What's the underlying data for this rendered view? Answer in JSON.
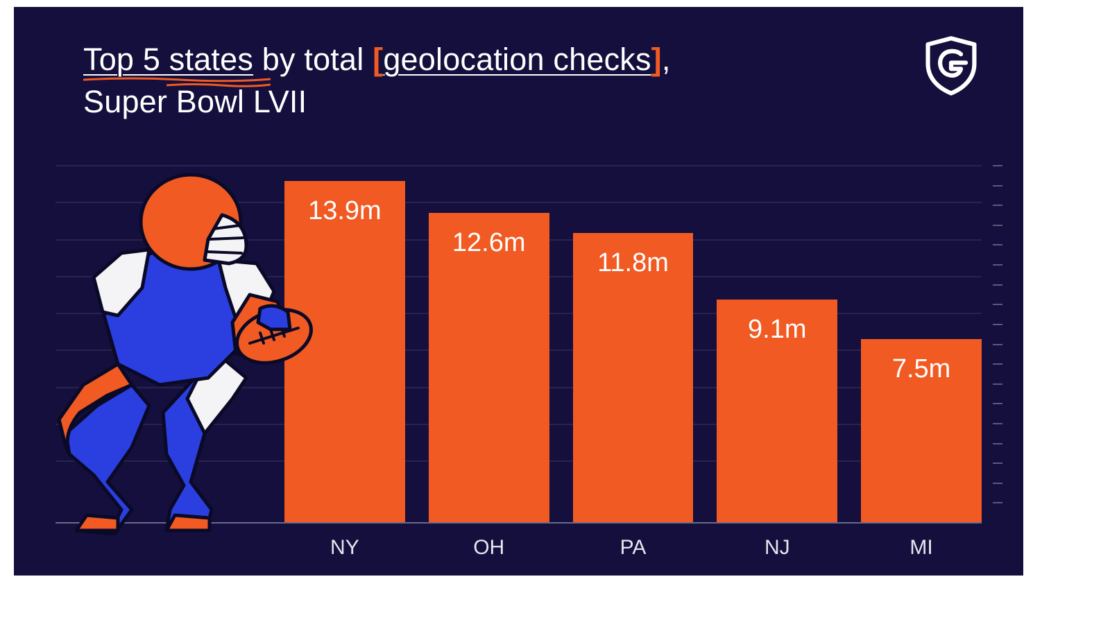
{
  "colors": {
    "background": "#140f3c",
    "accent": "#f15a22",
    "bar": "#f15a22",
    "grid": "#3a3560",
    "text": "#ffffff",
    "player_blue": "#2b3fe0",
    "player_white": "#f4f4f6",
    "player_outline": "#0a0a28"
  },
  "title": {
    "part1": "Top 5 states",
    "part2": "by total",
    "bracketed": "geolocation checks",
    "line2": "Super Bowl LVII",
    "fontsize": 45
  },
  "chart": {
    "type": "bar",
    "categories": [
      "NY",
      "OH",
      "PA",
      "NJ",
      "MI"
    ],
    "values": [
      13.9,
      12.6,
      11.8,
      9.1,
      7.5
    ],
    "value_suffix": "m",
    "ylim": [
      0,
      14.5
    ],
    "gridline_count": 9,
    "grid_start": 2.5,
    "grid_step": 1.5,
    "bar_color": "#f15a22",
    "value_fontsize": 38,
    "label_fontsize": 30
  },
  "logo_letter": "G"
}
